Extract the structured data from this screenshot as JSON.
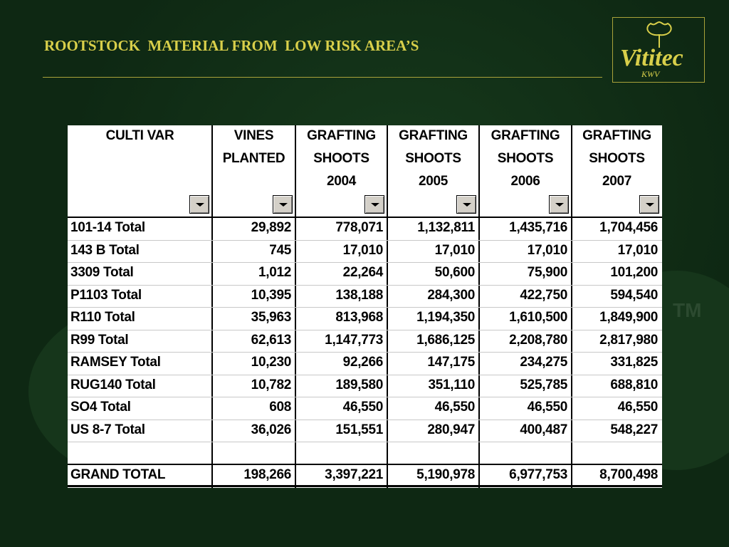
{
  "header": {
    "title": "ROOTSTOCK  MATERIAL FROM  LOW RISK AREA’S"
  },
  "logo": {
    "name": "Vititec",
    "sub": "KWV",
    "tm": "TM"
  },
  "table": {
    "columns": [
      [
        "CULTI VAR"
      ],
      [
        "VINES",
        "PLANTED"
      ],
      [
        "GRAFTING",
        "SHOOTS",
        "2004"
      ],
      [
        "GRAFTING",
        "SHOOTS",
        "2005"
      ],
      [
        "GRAFTING",
        "SHOOTS",
        "2006"
      ],
      [
        "GRAFTING",
        "SHOOTS",
        "2007"
      ]
    ],
    "rows": [
      [
        "101-14 Total",
        "29,892",
        "778,071",
        "1,132,811",
        "1,435,716",
        "1,704,456"
      ],
      [
        "143 B Total",
        "745",
        "17,010",
        "17,010",
        "17,010",
        "17,010"
      ],
      [
        "3309 Total",
        "1,012",
        "22,264",
        "50,600",
        "75,900",
        "101,200"
      ],
      [
        "P1103 Total",
        "10,395",
        "138,188",
        "284,300",
        "422,750",
        "594,540"
      ],
      [
        "R110 Total",
        "35,963",
        "813,968",
        "1,194,350",
        "1,610,500",
        "1,849,900"
      ],
      [
        "R99 Total",
        "62,613",
        "1,147,773",
        "1,686,125",
        "2,208,780",
        "2,817,980"
      ],
      [
        "RAMSEY Total",
        "10,230",
        "92,266",
        "147,175",
        "234,275",
        "331,825"
      ],
      [
        "RUG140 Total",
        "10,782",
        "189,580",
        "351,110",
        "525,785",
        "688,810"
      ],
      [
        "SO4 Total",
        "608",
        "46,550",
        "46,550",
        "46,550",
        "46,550"
      ],
      [
        "US 8-7 Total",
        "36,026",
        "151,551",
        "280,947",
        "400,487",
        "548,227"
      ]
    ],
    "total": [
      "GRAND TOTAL",
      "198,266",
      "3,397,221",
      "5,190,978",
      "6,977,753",
      "8,700,498"
    ]
  }
}
